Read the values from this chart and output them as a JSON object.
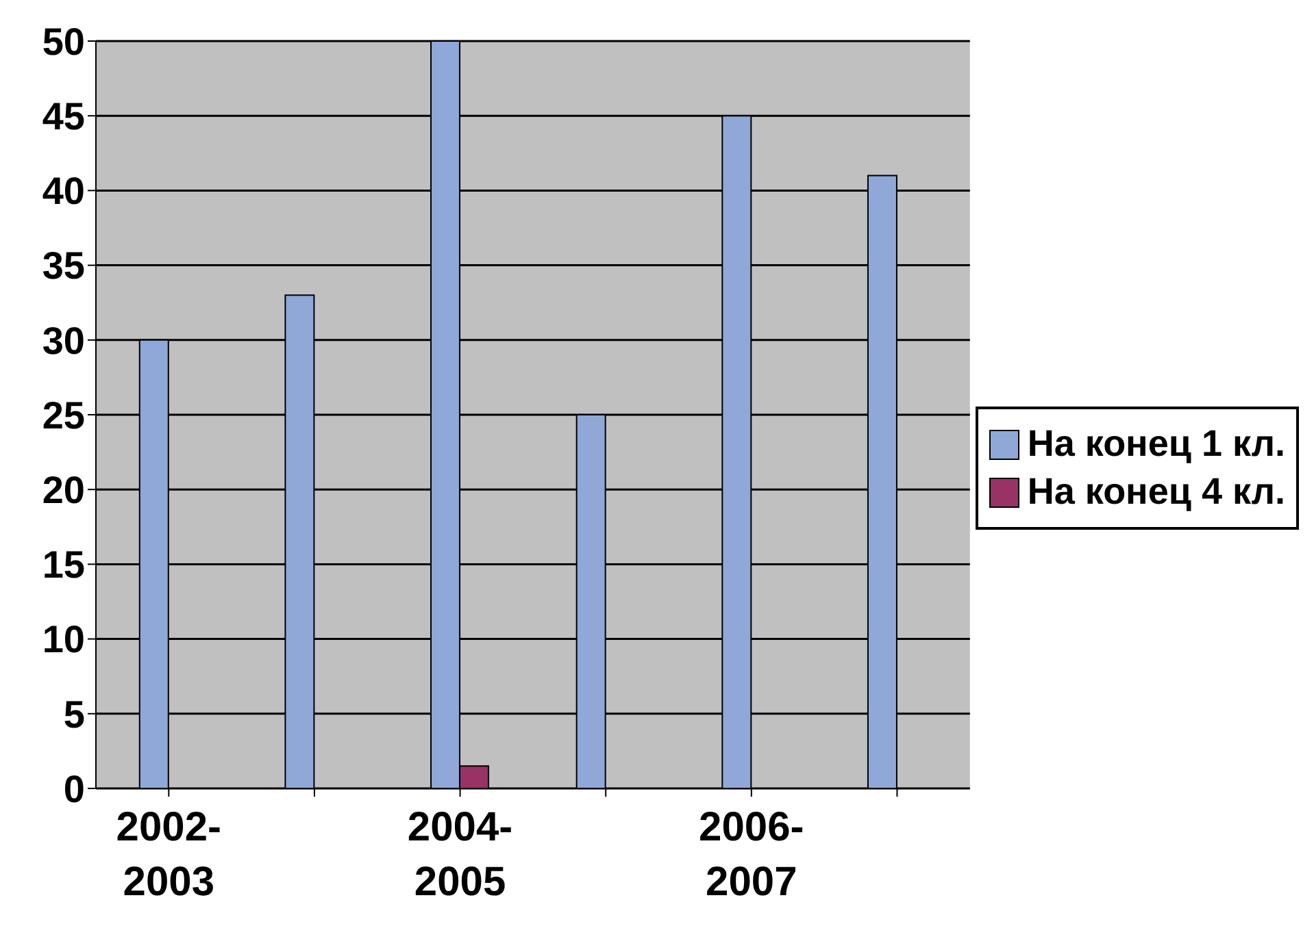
{
  "chart_data": {
    "type": "bar",
    "categories": [
      "2002-2003",
      null,
      "2004-2005",
      null,
      "2006-2007",
      null
    ],
    "series": [
      {
        "name": "На конец 1 кл.",
        "color": "#8fa8d8",
        "values": [
          30,
          33,
          50,
          25,
          45,
          41
        ]
      },
      {
        "name": "На конец 4 кл.",
        "color": "#993366",
        "values": [
          0,
          0,
          1.5,
          0,
          0,
          0
        ]
      }
    ],
    "ylim": [
      0,
      50
    ],
    "yticks": [
      0,
      5,
      10,
      15,
      20,
      25,
      30,
      35,
      40,
      45,
      50
    ],
    "grid": "y",
    "legend": "right"
  }
}
